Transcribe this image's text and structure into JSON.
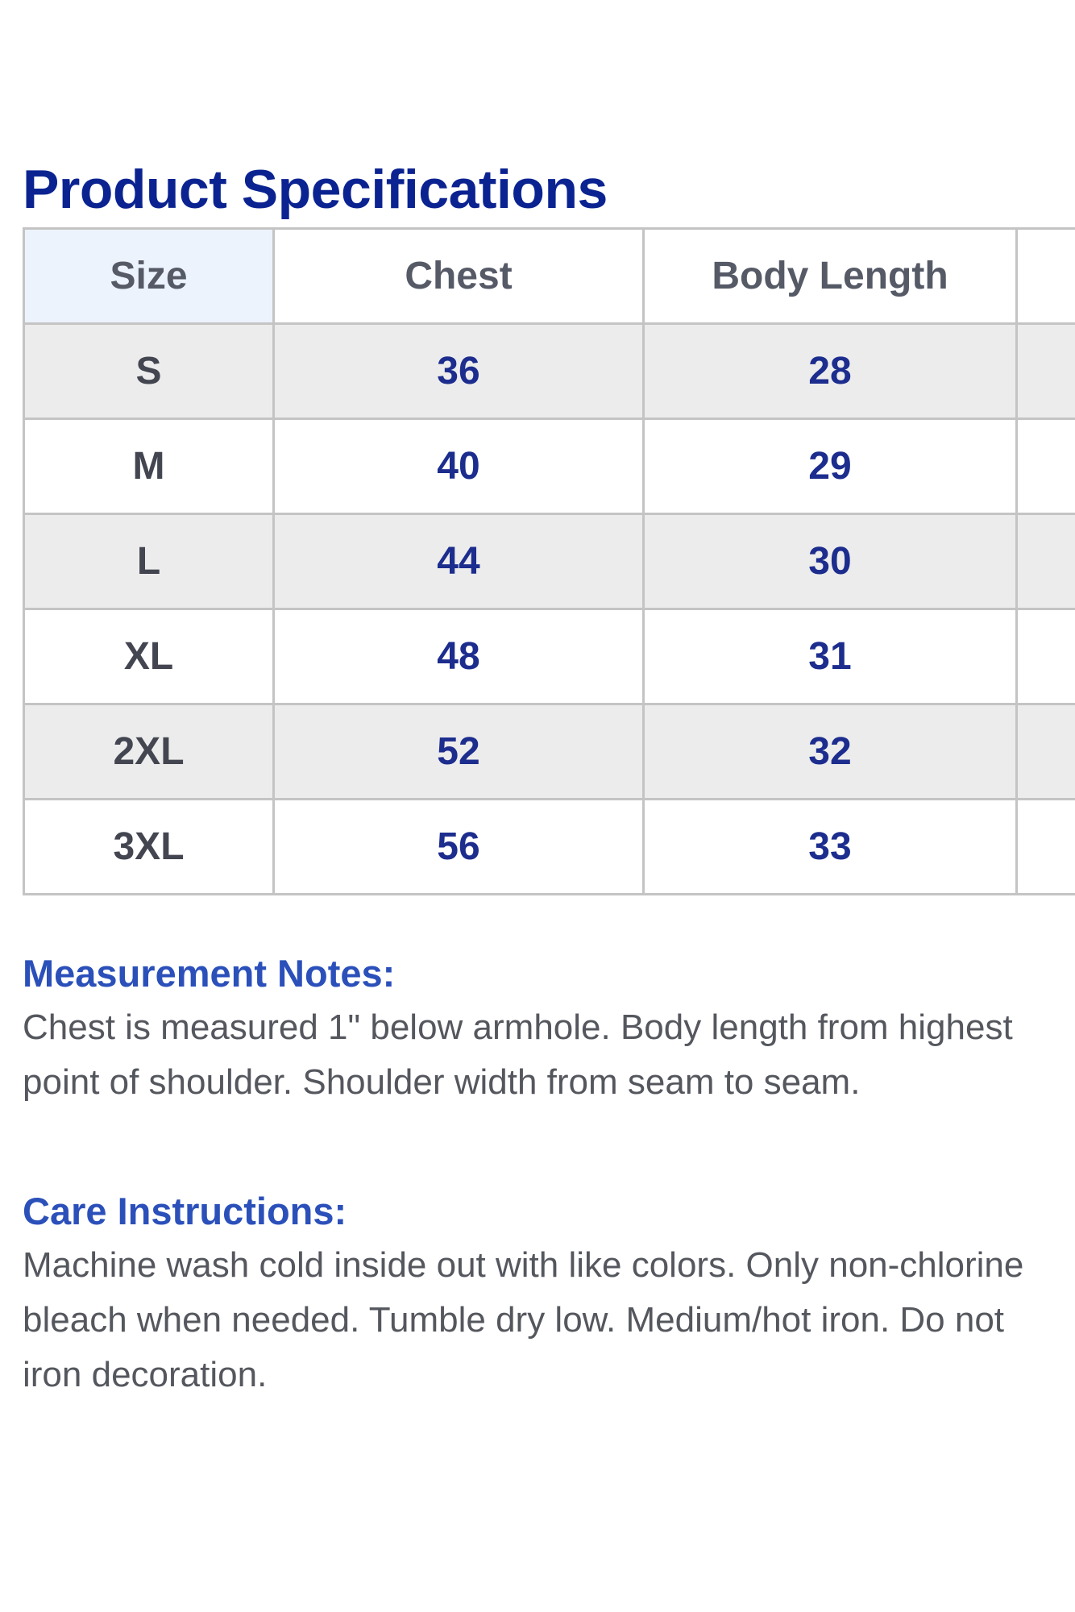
{
  "title": "Product Specifications",
  "table": {
    "headers": [
      "Size",
      "Chest",
      "Body Length",
      ""
    ],
    "rows": [
      [
        "S",
        "36",
        "28",
        ""
      ],
      [
        "M",
        "40",
        "29",
        ""
      ],
      [
        "L",
        "44",
        "30",
        ""
      ],
      [
        "XL",
        "48",
        "31",
        ""
      ],
      [
        "2XL",
        "52",
        "32",
        ""
      ],
      [
        "3XL",
        "56",
        "33",
        ""
      ]
    ]
  },
  "measurement_notes": {
    "heading": "Measurement Notes:",
    "text": "Chest is measured 1\" below armhole. Body length from highest point of shoulder. Shoulder width from seam to seam."
  },
  "care_instructions": {
    "heading": "Care Instructions:",
    "text": "Machine wash cold inside out with like colors. Only non-chlorine bleach when needed. Tumble dry low. Medium/hot iron. Do not iron decoration."
  },
  "colors": {
    "title": "#0b2391",
    "section_heading": "#2b50ba",
    "numbers": "#1c2d8e",
    "alt_row": "#ececec",
    "size_header_bg": "#edf3fd"
  }
}
